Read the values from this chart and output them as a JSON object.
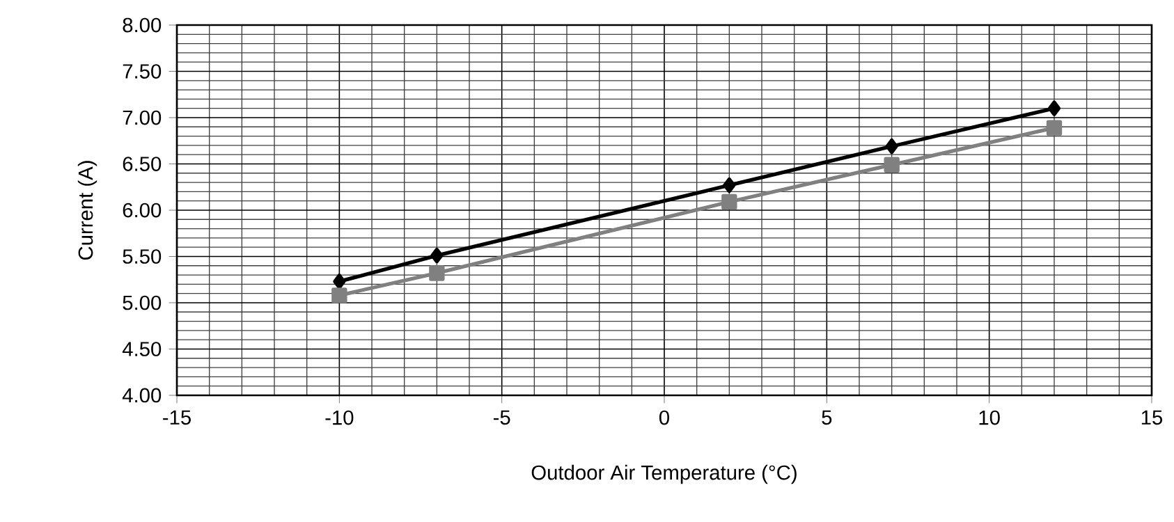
{
  "chart_data": {
    "type": "line",
    "xlabel": "Outdoor Air Temperature (°C)",
    "ylabel": "Current (A)",
    "xlim": [
      -15,
      15
    ],
    "xticks": [
      -15,
      -10,
      -5,
      0,
      5,
      10,
      15
    ],
    "ylim": [
      4,
      8
    ],
    "yticks": [
      {
        "value": 4,
        "label": "4.00"
      },
      {
        "value": 4.5,
        "label": "4.50"
      },
      {
        "value": 5,
        "label": "5.00"
      },
      {
        "value": 5.5,
        "label": "5.50"
      },
      {
        "value": 6,
        "label": "6.00"
      },
      {
        "value": 6.5,
        "label": "6.50"
      },
      {
        "value": 7,
        "label": "7.00"
      },
      {
        "value": 7.5,
        "label": "7.50"
      },
      {
        "value": 8,
        "label": "8.00"
      }
    ],
    "x": [
      -10,
      -7,
      2,
      7,
      12
    ],
    "grid": true,
    "series": [
      {
        "color": "#000000",
        "marker": "diamond",
        "values": [
          5.23,
          5.51,
          6.27,
          6.69,
          7.1
        ]
      },
      {
        "color": "#808080",
        "marker": "square",
        "values": [
          5.08,
          5.32,
          6.09,
          6.49,
          6.89
        ]
      }
    ]
  }
}
